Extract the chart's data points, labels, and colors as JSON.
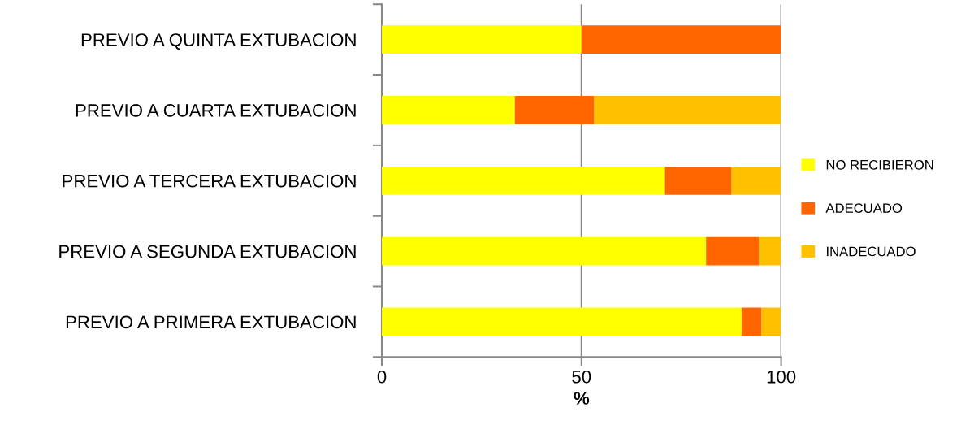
{
  "chart_data": {
    "type": "bar",
    "orientation": "horizontal",
    "stacked": true,
    "xlabel": "%",
    "categories": [
      "PREVIO A QUINTA EXTUBACION",
      "PREVIO A CUARTA EXTUBACION",
      "PREVIO A TERCERA EXTUBACION",
      "PREVIO A SEGUNDA EXTUBACION",
      "PREVIO A PRIMERA EXTUBACION"
    ],
    "series": [
      {
        "name": "NO RECIBIERON",
        "color": "#ffff00",
        "values": [
          50,
          33.3,
          70.9,
          81.2,
          90.1
        ]
      },
      {
        "name": "ADECUADO",
        "color": "#ff6600",
        "values": [
          50,
          19.9,
          16.7,
          13.3,
          5.0
        ]
      },
      {
        "name": "INADECUADO",
        "color": "#ffc000",
        "values": [
          0,
          46.8,
          12.4,
          5.5,
          4.9
        ]
      }
    ],
    "xlim": [
      0,
      100
    ],
    "xticks": [
      0,
      50,
      100
    ],
    "grid": "x",
    "legend": "right"
  }
}
